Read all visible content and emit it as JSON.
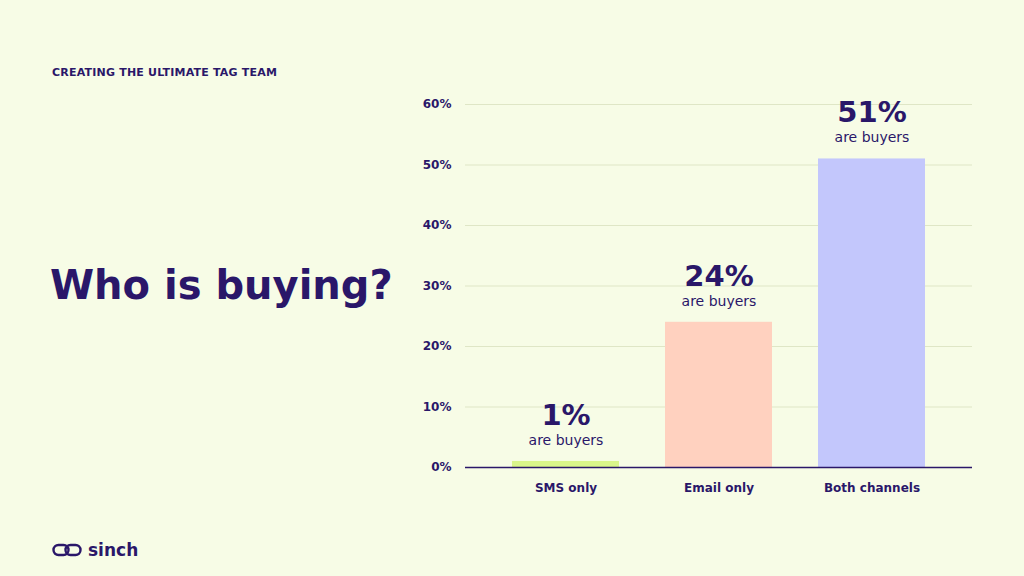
{
  "chart_data": {
    "type": "bar",
    "title": "Who is buying?",
    "subtitle": "CREATING THE ULTIMATE TAG TEAM",
    "categories": [
      "SMS only",
      "Email only",
      "Both channels"
    ],
    "values": [
      1,
      24,
      51
    ],
    "value_labels": [
      "1%",
      "24%",
      "51%"
    ],
    "annotations": [
      "are buyers",
      "are buyers",
      "are buyers"
    ],
    "colors": [
      "#d9f58a",
      "#ffd1bf",
      "#c3c7fc"
    ],
    "ylim": [
      0,
      60
    ],
    "yticks": [
      {
        "value": 0,
        "label": "0%"
      },
      {
        "value": 10,
        "label": "10%"
      },
      {
        "value": 20,
        "label": "20%"
      },
      {
        "value": 30,
        "label": "30%"
      },
      {
        "value": 40,
        "label": "40%"
      },
      {
        "value": 50,
        "label": "50%"
      },
      {
        "value": 60,
        "label": "60%"
      }
    ],
    "grid": true,
    "data_labels": true
  },
  "branding": {
    "logo": "sinch"
  }
}
